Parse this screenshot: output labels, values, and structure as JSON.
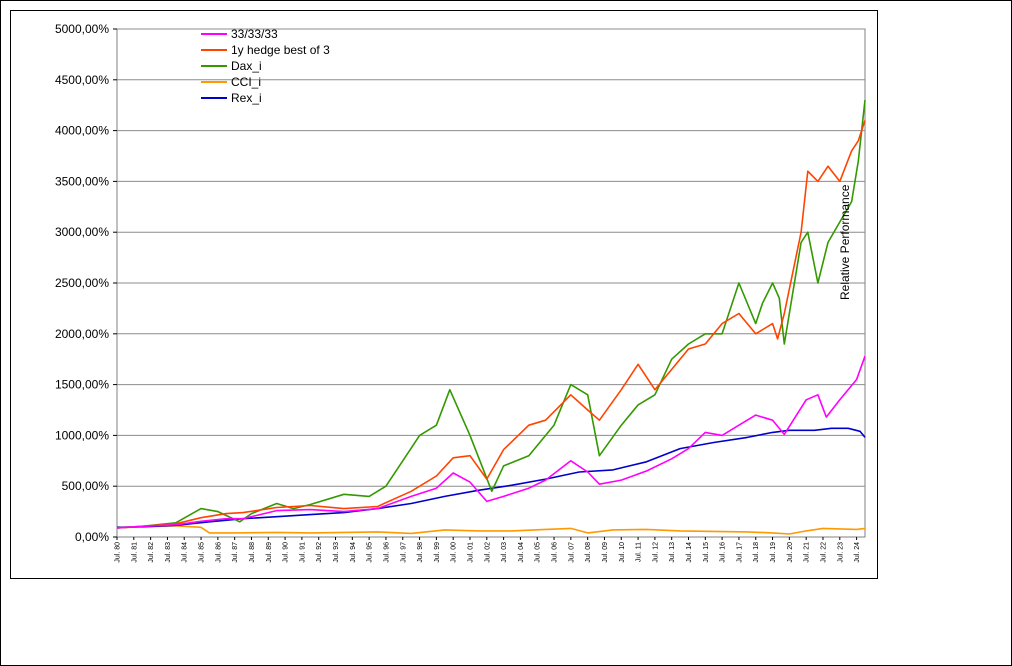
{
  "chart_data": {
    "type": "line",
    "title": "",
    "xlabel": "",
    "ylabel": "",
    "side_label": "Relative Performance",
    "ylim": [
      0,
      5000
    ],
    "y_ticks": [
      "0,00%",
      "500,00%",
      "1000,00%",
      "1500,00%",
      "2000,00%",
      "2500,00%",
      "3000,00%",
      "3500,00%",
      "4000,00%",
      "4500,00%",
      "5000,00%"
    ],
    "x_ticks": [
      "Jul. 80",
      "Jul. 81",
      "Jul. 82",
      "Jul. 83",
      "Jul. 84",
      "Jul. 85",
      "Jul. 86",
      "Jul. 87",
      "Jul. 88",
      "Jul. 89",
      "Jul. 90",
      "Jul. 91",
      "Jul. 92",
      "Jul. 93",
      "Jul. 94",
      "Jul. 95",
      "Jul. 96",
      "Jul. 97",
      "Jul. 98",
      "Jul. 99",
      "Jul. 00",
      "Jul. 01",
      "Jul. 02",
      "Jul. 03",
      "Jul. 04",
      "Jul. 05",
      "Jul. 06",
      "Jul. 07",
      "Jul. 08",
      "Jul. 09",
      "Jul. 10",
      "Jul. 11",
      "Jul. 12",
      "Jul. 13",
      "Jul. 14",
      "Jul. 15",
      "Jul. 16",
      "Jul. 17",
      "Jul. 18",
      "Jul. 19",
      "Jul. 20",
      "Jul. 21",
      "Jul. 22",
      "Jul. 23",
      "Jul. 24"
    ],
    "x_range": [
      1980.5,
      2025.0
    ],
    "grid": "horizontal",
    "legend_position": "top-left",
    "series": [
      {
        "name": "33/33/33",
        "color": "#ff00ff",
        "x": [
          1980.5,
          1982,
          1984,
          1985.5,
          1987,
          1988,
          1990,
          1992,
          1994,
          1996,
          1998,
          1999.5,
          2000.5,
          2001.5,
          2002.5,
          2003.5,
          2005,
          2006,
          2007.5,
          2008.5,
          2009.2,
          2010.5,
          2012,
          2013.5,
          2014.5,
          2015.5,
          2016.5,
          2017.5,
          2018.5,
          2019.5,
          2020.2,
          2021.5,
          2022.2,
          2022.7,
          2023.5,
          2024.5,
          2025.0
        ],
        "y": [
          90,
          105,
          120,
          155,
          180,
          180,
          260,
          270,
          250,
          280,
          400,
          480,
          630,
          540,
          350,
          400,
          480,
          560,
          750,
          640,
          520,
          560,
          650,
          770,
          870,
          1030,
          1000,
          1100,
          1200,
          1150,
          1010,
          1350,
          1400,
          1180,
          1350,
          1550,
          1780
        ]
      },
      {
        "name": "1y hedge best of 3",
        "color": "#ff4400",
        "x": [
          1980.5,
          1982,
          1984,
          1985.5,
          1987,
          1988,
          1990,
          1992,
          1994,
          1996,
          1998,
          1999.5,
          2000.5,
          2001.5,
          2002.5,
          2003.5,
          2005,
          2006,
          2007.5,
          2008.5,
          2009.2,
          2010.5,
          2011.5,
          2012.5,
          2013.5,
          2014.5,
          2015.5,
          2016.5,
          2017.5,
          2018.5,
          2019.5,
          2019.8,
          2020.2,
          2021.2,
          2021.6,
          2022.2,
          2022.8,
          2023.5,
          2024.2,
          2024.6,
          2025.0
        ],
        "y": [
          90,
          105,
          130,
          190,
          230,
          240,
          290,
          310,
          280,
          300,
          450,
          600,
          780,
          800,
          570,
          860,
          1100,
          1150,
          1400,
          1250,
          1150,
          1450,
          1700,
          1450,
          1650,
          1850,
          1900,
          2100,
          2200,
          2000,
          2100,
          1950,
          2200,
          3000,
          3600,
          3500,
          3650,
          3500,
          3800,
          3900,
          4100
        ]
      },
      {
        "name": "Dax_i",
        "color": "#339900",
        "x": [
          1980.5,
          1982,
          1984,
          1985.5,
          1986.5,
          1987.8,
          1988.5,
          1990,
          1991,
          1992,
          1994,
          1995.5,
          1996.5,
          1997.5,
          1998.5,
          1999.5,
          2000.3,
          2001.5,
          2002.8,
          2003.5,
          2005,
          2006.5,
          2007.5,
          2008.5,
          2009.2,
          2010.5,
          2011.5,
          2012.5,
          2013.5,
          2014.5,
          2015.5,
          2016.5,
          2017.5,
          2018.5,
          2018.9,
          2019.5,
          2019.9,
          2020.2,
          2021.2,
          2021.6,
          2022.2,
          2022.8,
          2023.5,
          2024.2,
          2024.6,
          2025.0
        ],
        "y": [
          90,
          105,
          140,
          280,
          250,
          150,
          230,
          330,
          280,
          320,
          420,
          400,
          500,
          750,
          1000,
          1100,
          1450,
          1000,
          450,
          700,
          800,
          1100,
          1500,
          1400,
          800,
          1100,
          1300,
          1400,
          1750,
          1900,
          2000,
          2000,
          2500,
          2100,
          2300,
          2500,
          2350,
          1900,
          2900,
          3000,
          2500,
          2900,
          3100,
          3300,
          3700,
          4300
        ]
      },
      {
        "name": "CCI_i",
        "color": "#ff9900",
        "x": [
          1980.5,
          1982,
          1984,
          1985.5,
          1986,
          1987.5,
          1990,
          1992,
          1994,
          1996,
          1998,
          2000,
          2002,
          2004,
          2006,
          2007.5,
          2008.5,
          2010,
          2012,
          2014,
          2016,
          2018,
          2019.5,
          2020.5,
          2021.5,
          2022.5,
          2023.5,
          2024.5,
          2025.0
        ],
        "y": [
          90,
          100,
          110,
          95,
          40,
          40,
          45,
          40,
          45,
          50,
          35,
          70,
          60,
          60,
          75,
          85,
          40,
          70,
          75,
          60,
          55,
          50,
          40,
          30,
          60,
          85,
          80,
          75,
          85
        ]
      },
      {
        "name": "Rex_i",
        "color": "#0000cc",
        "x": [
          1980.5,
          1982,
          1984,
          1986,
          1988,
          1990,
          1992,
          1994,
          1996,
          1998,
          2000,
          2002,
          2004,
          2006,
          2008,
          2010,
          2012,
          2014,
          2016,
          2018,
          2019.5,
          2020.5,
          2022,
          2023,
          2024,
          2024.7,
          2025.0
        ],
        "y": [
          95,
          100,
          115,
          150,
          180,
          200,
          220,
          240,
          280,
          330,
          400,
          460,
          510,
          570,
          640,
          660,
          740,
          870,
          930,
          980,
          1030,
          1050,
          1050,
          1070,
          1070,
          1040,
          980
        ]
      }
    ]
  }
}
